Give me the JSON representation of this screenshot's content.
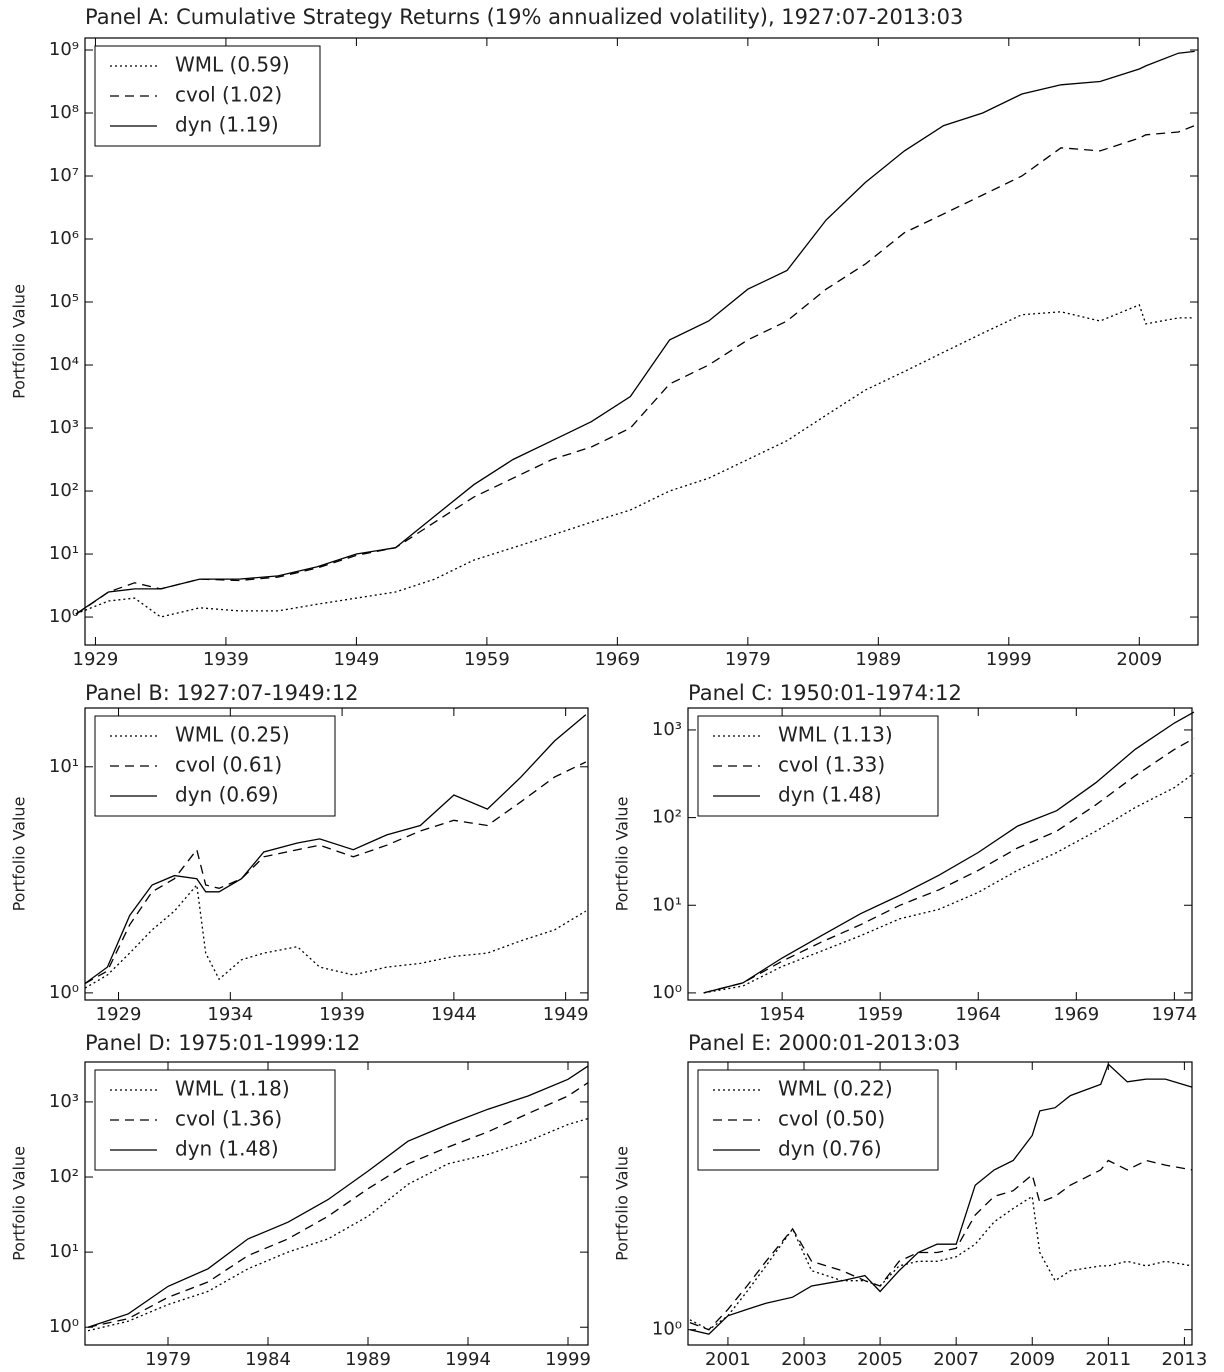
{
  "chart_data": [
    {
      "type": "line",
      "title": "Panel A: Cumulative Strategy Returns (19% annualized volatility), 1927:07-2013:03",
      "y_label": "Portfolio Value",
      "log_y": true,
      "legend": "upper left",
      "x": [
        1927.5,
        1930,
        1932,
        1934,
        1937,
        1940,
        1943,
        1946,
        1949,
        1952,
        1955,
        1958,
        1961,
        1964,
        1967,
        1970,
        1973,
        1976,
        1979,
        1982,
        1985,
        1988,
        1991,
        1994,
        1997,
        2000,
        2003,
        2006,
        2009,
        2009.5,
        2012,
        2013.25
      ],
      "series": [
        {
          "name": "WML (0.59)",
          "color": "#000000",
          "style": "dotted",
          "values": [
            1.12,
            1.8,
            2.0,
            1.0,
            1.4,
            1.25,
            1.25,
            1.6,
            2.0,
            2.5,
            4,
            8,
            12.6,
            20,
            32,
            50,
            100,
            160,
            316,
            630,
            1600,
            4000,
            7900,
            16000,
            32000,
            63000,
            70000,
            50000,
            90000,
            45000,
            56000,
            56000
          ]
        },
        {
          "name": "cvol (1.02)",
          "color": "#000000",
          "style": "dashed",
          "values": [
            1.1,
            2.5,
            3.5,
            2.8,
            4,
            3.8,
            4.3,
            6,
            9.5,
            12.6,
            32,
            80,
            160,
            316,
            500,
            1000,
            5000,
            10000,
            25000,
            50000,
            160000,
            400000,
            1260000,
            2500000,
            5000000,
            10000000,
            28000000,
            25000000,
            40000000,
            45000000,
            50000000,
            63000000
          ]
        },
        {
          "name": "dyn (1.19)",
          "color": "#000000",
          "style": "solid",
          "values": [
            1.12,
            2.5,
            2.8,
            2.8,
            4,
            4,
            4.5,
            6.3,
            10,
            12.6,
            40,
            126,
            316,
            630,
            1260,
            3160,
            25000,
            50000,
            160000,
            316000,
            2000000,
            7900000,
            25000000,
            63000000,
            100000000,
            200000000,
            280000000,
            316000000,
            500000000,
            560000000,
            890000000,
            950000000
          ]
        }
      ],
      "xlim": [
        1928.2,
        2013.5
      ],
      "ylim": [
        0.36,
        1550000000
      ],
      "xticks": [
        1929,
        1939,
        1949,
        1959,
        1969,
        1979,
        1989,
        1999,
        2009
      ],
      "yticks": [
        {
          "value": 1,
          "label": "10⁰"
        },
        {
          "value": 10,
          "label": "10¹"
        },
        {
          "value": 100,
          "label": "10²"
        },
        {
          "value": 1000,
          "label": "10³"
        },
        {
          "value": 10000,
          "label": "10⁴"
        },
        {
          "value": 100000,
          "label": "10⁵"
        },
        {
          "value": 1000000,
          "label": "10⁶"
        },
        {
          "value": 10000000,
          "label": "10⁷"
        },
        {
          "value": 100000000,
          "label": "10⁸"
        },
        {
          "value": 1000000000,
          "label": "10⁹"
        }
      ]
    },
    {
      "type": "line",
      "title": "Panel B: 1927:07-1949:12",
      "y_label": "Portfolio Value",
      "log_y": true,
      "legend": "upper left",
      "x": [
        1927.5,
        1928.5,
        1929.5,
        1930.5,
        1931.5,
        1932.5,
        1932.9,
        1933.5,
        1934.5,
        1935.5,
        1937,
        1938,
        1939.5,
        1941,
        1942.5,
        1944,
        1945.5,
        1947,
        1948.5,
        1949.9
      ],
      "series": [
        {
          "name": "WML (0.25)",
          "color": "#000000",
          "style": "dotted",
          "values": [
            1.05,
            1.2,
            1.5,
            1.9,
            2.3,
            3.0,
            1.5,
            1.15,
            1.4,
            1.5,
            1.6,
            1.3,
            1.2,
            1.3,
            1.35,
            1.45,
            1.5,
            1.7,
            1.9,
            2.3
          ]
        },
        {
          "name": "cvol (0.61)",
          "color": "#000000",
          "style": "dashed",
          "values": [
            1.1,
            1.25,
            2.0,
            2.8,
            3.2,
            4.3,
            3.0,
            2.9,
            3.2,
            4.0,
            4.3,
            4.5,
            4.0,
            4.5,
            5.2,
            5.8,
            5.5,
            7,
            9,
            10.5
          ]
        },
        {
          "name": "dyn (0.69)",
          "color": "#000000",
          "style": "solid",
          "values": [
            1.1,
            1.3,
            2.2,
            3.0,
            3.3,
            3.2,
            2.8,
            2.8,
            3.2,
            4.2,
            4.6,
            4.8,
            4.3,
            5.0,
            5.5,
            7.5,
            6.5,
            9,
            13,
            17
          ]
        }
      ],
      "xlim": [
        1927.5,
        1950
      ],
      "ylim": [
        0.93,
        18.2
      ],
      "xticks": [
        1929,
        1934,
        1939,
        1944,
        1949
      ],
      "yticks": [
        {
          "value": 1,
          "label": "10⁰"
        },
        {
          "value": 10,
          "label": "10¹"
        }
      ]
    },
    {
      "type": "line",
      "title": "Panel C: 1950:01-1974:12",
      "y_label": "Portfolio Value",
      "log_y": true,
      "legend": "upper left",
      "x": [
        1950,
        1952,
        1954,
        1956,
        1958,
        1960,
        1962,
        1964,
        1966,
        1968,
        1970,
        1972,
        1974,
        1975
      ],
      "series": [
        {
          "name": "WML (1.13)",
          "color": "#000000",
          "style": "dotted",
          "values": [
            1,
            1.2,
            2,
            3,
            4.5,
            7,
            9,
            14,
            25,
            40,
            70,
            130,
            220,
            320
          ]
        },
        {
          "name": "cvol (1.33)",
          "color": "#000000",
          "style": "dashed",
          "values": [
            1,
            1.3,
            2.3,
            3.8,
            6,
            10,
            15,
            25,
            45,
            70,
            140,
            300,
            600,
            800
          ]
        },
        {
          "name": "dyn (1.48)",
          "color": "#000000",
          "style": "solid",
          "values": [
            1,
            1.3,
            2.5,
            4.5,
            8,
            13,
            22,
            40,
            80,
            120,
            250,
            600,
            1200,
            1600
          ]
        }
      ],
      "xlim": [
        1949.2,
        1974.9
      ],
      "ylim": [
        0.83,
        1780
      ],
      "xticks": [
        1954,
        1959,
        1964,
        1969,
        1974
      ],
      "yticks": [
        {
          "value": 1,
          "label": "10⁰"
        },
        {
          "value": 10,
          "label": "10¹"
        },
        {
          "value": 100,
          "label": "10²"
        },
        {
          "value": 1000,
          "label": "10³"
        }
      ]
    },
    {
      "type": "line",
      "title": "Panel D: 1975:01-1999:12",
      "y_label": "Portfolio Value",
      "log_y": true,
      "legend": "upper left",
      "x": [
        1975,
        1977,
        1979,
        1981,
        1983,
        1985,
        1987,
        1989,
        1991,
        1993,
        1995,
        1997,
        1999,
        2000
      ],
      "series": [
        {
          "name": "WML (1.18)",
          "color": "#000000",
          "style": "dotted",
          "values": [
            0.9,
            1.2,
            2,
            3,
            6,
            10,
            15,
            30,
            80,
            150,
            200,
            300,
            500,
            600
          ]
        },
        {
          "name": "cvol (1.36)",
          "color": "#000000",
          "style": "dashed",
          "values": [
            1,
            1.3,
            2.5,
            4,
            9,
            15,
            30,
            70,
            150,
            250,
            400,
            700,
            1200,
            1800
          ]
        },
        {
          "name": "dyn (1.48)",
          "color": "#000000",
          "style": "solid",
          "values": [
            1,
            1.5,
            3.5,
            6,
            15,
            25,
            50,
            120,
            300,
            500,
            800,
            1200,
            2000,
            3000
          ]
        }
      ],
      "xlim": [
        1974.85,
        2000
      ],
      "ylim": [
        0.58,
        3400
      ],
      "xticks": [
        1979,
        1984,
        1989,
        1994,
        1999
      ],
      "yticks": [
        {
          "value": 1,
          "label": "10⁰"
        },
        {
          "value": 10,
          "label": "10¹"
        },
        {
          "value": 100,
          "label": "10²"
        },
        {
          "value": 1000,
          "label": "10³"
        }
      ]
    },
    {
      "type": "line",
      "title": "Panel E: 2000:01-2013:03",
      "y_label": "Portfolio Value",
      "log_y": true,
      "legend": "upper left",
      "x": [
        2000,
        2000.5,
        2001,
        2001.5,
        2002,
        2002.7,
        2003.2,
        2004,
        2004.6,
        2005,
        2005.5,
        2006,
        2006.5,
        2007,
        2007.5,
        2008,
        2008.5,
        2009,
        2009.2,
        2009.6,
        2010,
        2010.8,
        2011,
        2011.5,
        2012,
        2012.5,
        2013.2
      ],
      "series": [
        {
          "name": "WML (0.22)",
          "color": "#000000",
          "style": "dotted",
          "values": [
            1.07,
            1.0,
            1.1,
            1.3,
            1.55,
            2.0,
            1.5,
            1.4,
            1.4,
            1.35,
            1.55,
            1.6,
            1.6,
            1.65,
            1.8,
            2.1,
            2.3,
            2.5,
            1.7,
            1.4,
            1.5,
            1.55,
            1.55,
            1.6,
            1.55,
            1.6,
            1.55
          ]
        },
        {
          "name": "cvol (0.50)",
          "color": "#000000",
          "style": "dashed",
          "values": [
            1.05,
            1.0,
            1.15,
            1.35,
            1.6,
            2.0,
            1.6,
            1.5,
            1.4,
            1.35,
            1.6,
            1.7,
            1.7,
            1.75,
            2.2,
            2.5,
            2.6,
            2.9,
            2.4,
            2.5,
            2.7,
            3.0,
            3.2,
            3.0,
            3.2,
            3.1,
            3.0
          ]
        },
        {
          "name": "dyn (0.76)",
          "color": "#000000",
          "style": "solid",
          "values": [
            1.0,
            0.97,
            1.1,
            1.15,
            1.2,
            1.25,
            1.35,
            1.4,
            1.45,
            1.3,
            1.5,
            1.7,
            1.8,
            1.8,
            2.7,
            3.0,
            3.2,
            3.8,
            4.5,
            4.6,
            5.0,
            5.4,
            6.2,
            5.5,
            5.6,
            5.6,
            5.3
          ]
        }
      ],
      "xlim": [
        1999.95,
        2013.2
      ],
      "ylim": [
        0.9,
        6.3
      ],
      "xticks": [
        2001,
        2003,
        2005,
        2007,
        2009,
        2011,
        2013
      ],
      "yticks": [
        {
          "value": 1,
          "label": "10⁰"
        }
      ]
    }
  ]
}
